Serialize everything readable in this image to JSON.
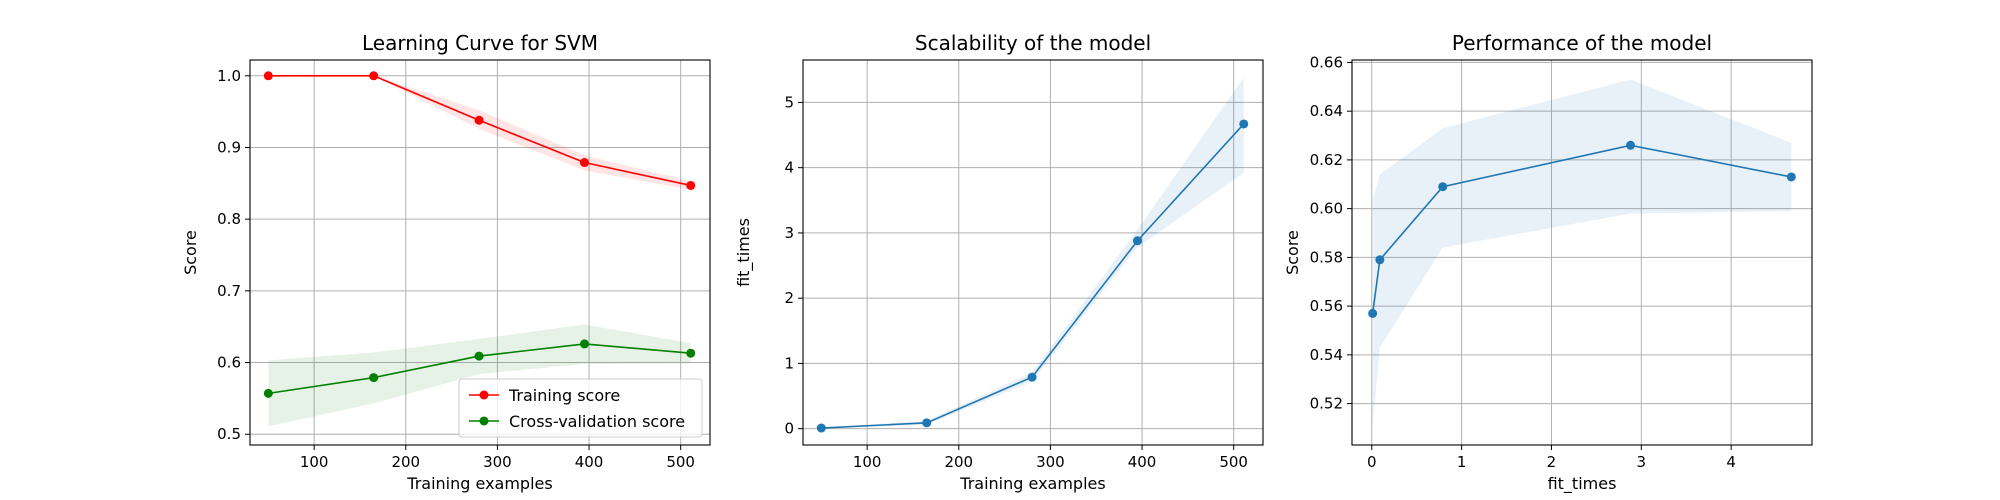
{
  "chart_data": [
    {
      "type": "line",
      "title": "Learning Curve for SVM",
      "xlabel": "Training examples",
      "ylabel": "Score",
      "xlim": [
        30,
        532
      ],
      "ylim": [
        0.485,
        1.022
      ],
      "xticks": [
        100,
        200,
        300,
        400,
        500
      ],
      "yticks": [
        0.5,
        0.6,
        0.7,
        0.8,
        0.9,
        1.0
      ],
      "grid": true,
      "legend": "lower-right",
      "series": [
        {
          "name": "Training score",
          "color": "#ff0000",
          "x": [
            50,
            165,
            280,
            395,
            511
          ],
          "y": [
            1.0,
            1.0,
            0.938,
            0.879,
            0.847
          ],
          "band_lower": [
            1.0,
            1.0,
            0.926,
            0.868,
            0.841
          ],
          "band_upper": [
            1.0,
            1.0,
            0.952,
            0.889,
            0.853
          ]
        },
        {
          "name": "Cross-validation score",
          "color": "#008000",
          "x": [
            50,
            165,
            280,
            395,
            511
          ],
          "y": [
            0.557,
            0.579,
            0.609,
            0.626,
            0.613
          ],
          "band_lower": [
            0.511,
            0.543,
            0.584,
            0.598,
            0.599
          ],
          "band_upper": [
            0.603,
            0.614,
            0.633,
            0.653,
            0.627
          ]
        }
      ]
    },
    {
      "type": "line",
      "title": "Scalability of the model",
      "xlabel": "Training examples",
      "ylabel": "fit_times",
      "xlim": [
        30,
        532
      ],
      "ylim": [
        -0.25,
        5.65
      ],
      "xticks": [
        100,
        200,
        300,
        400,
        500
      ],
      "yticks": [
        0,
        1,
        2,
        3,
        4,
        5
      ],
      "grid": true,
      "series": [
        {
          "color": "#1f77b4",
          "x": [
            50,
            165,
            280,
            395,
            511
          ],
          "y": [
            0.01,
            0.09,
            0.79,
            2.88,
            4.67
          ],
          "band_lower": [
            0.0,
            0.06,
            0.72,
            2.78,
            3.92
          ],
          "band_upper": [
            0.02,
            0.12,
            0.86,
            3.05,
            5.38
          ]
        }
      ]
    },
    {
      "type": "line",
      "title": "Performance of the model",
      "xlabel": "fit_times",
      "ylabel": "Score",
      "xlim": [
        -0.22,
        4.9
      ],
      "ylim": [
        0.503,
        0.661
      ],
      "xticks": [
        0,
        1,
        2,
        3,
        4
      ],
      "yticks": [
        0.52,
        0.54,
        0.56,
        0.58,
        0.6,
        0.62,
        0.64,
        0.66
      ],
      "grid": true,
      "series": [
        {
          "color": "#1f77b4",
          "x": [
            0.01,
            0.09,
            0.79,
            2.88,
            4.67
          ],
          "y": [
            0.557,
            0.579,
            0.609,
            0.626,
            0.613
          ],
          "band_lower": [
            0.511,
            0.543,
            0.584,
            0.598,
            0.599
          ],
          "band_upper": [
            0.603,
            0.614,
            0.633,
            0.653,
            0.627
          ]
        }
      ]
    }
  ]
}
